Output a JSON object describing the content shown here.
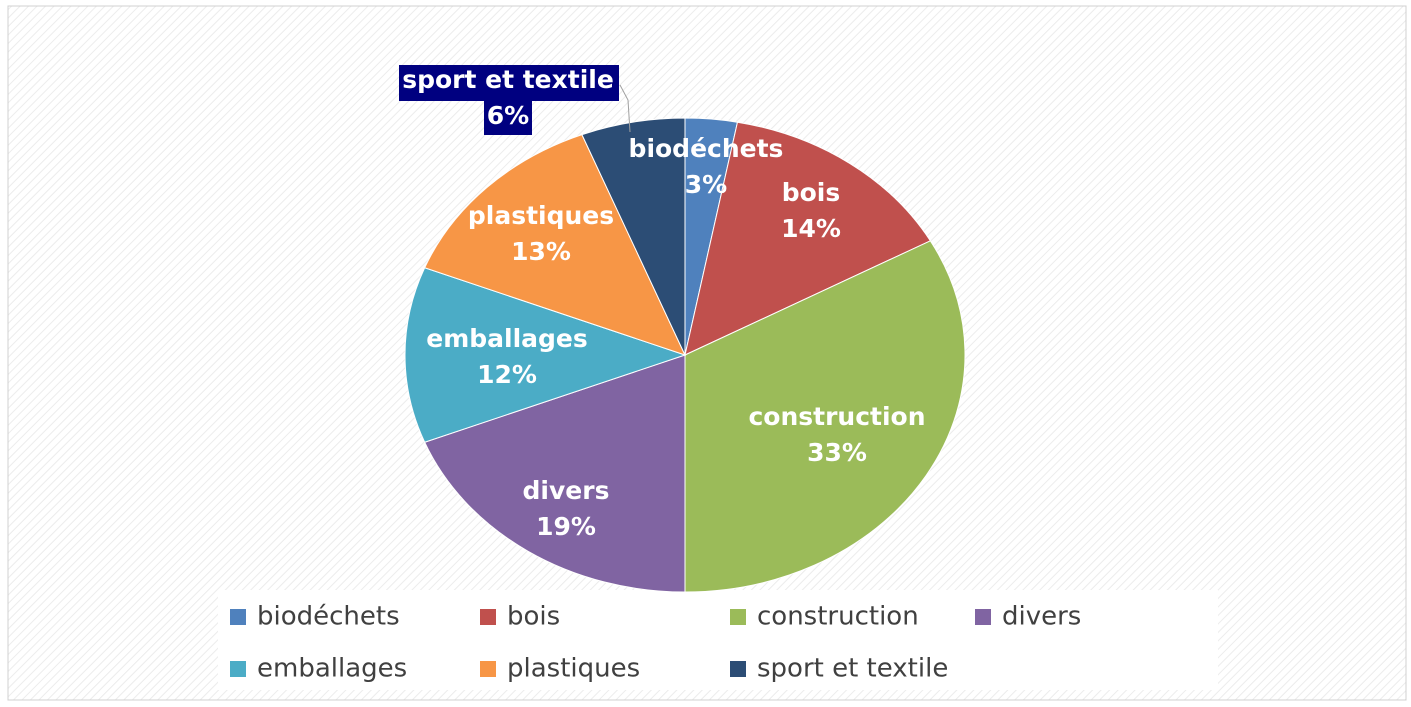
{
  "chart_data": {
    "type": "pie",
    "categories": [
      "biodéchets",
      "bois",
      "construction",
      "divers",
      "emballages",
      "plastiques",
      "sport et textile"
    ],
    "values": [
      3,
      14,
      33,
      19,
      12,
      13,
      6
    ],
    "value_labels": [
      "3%",
      "14%",
      "33%",
      "19%",
      "12%",
      "13%",
      "6%"
    ],
    "colors": [
      "#4f81bd",
      "#c0504d",
      "#9bbb59",
      "#8064a2",
      "#4bacc6",
      "#f79646",
      "#2c4d75"
    ],
    "legend": "bottom"
  }
}
